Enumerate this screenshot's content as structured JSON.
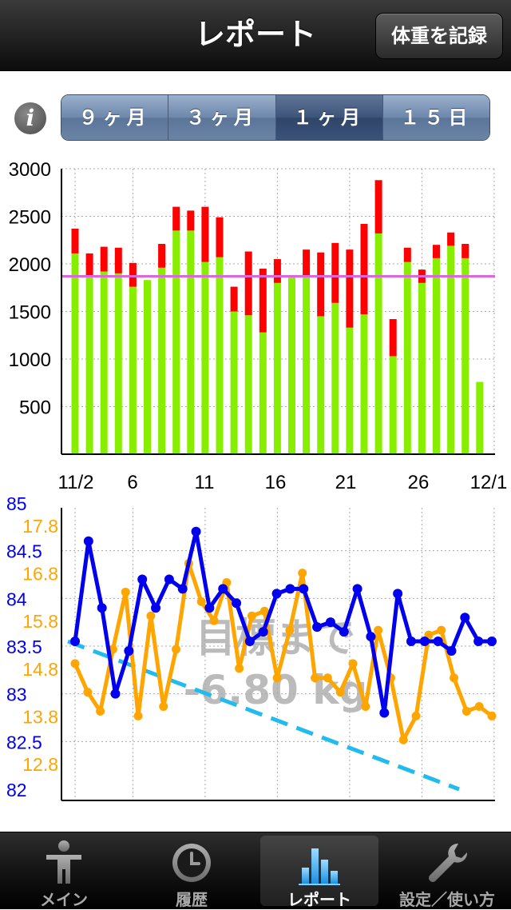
{
  "navbar": {
    "title": "レポート",
    "record_button": "体重を記録"
  },
  "segmented": {
    "items": [
      "９ヶ月",
      "３ヶ月",
      "１ヶ月",
      "１５日"
    ],
    "selected_index": 2
  },
  "tabbar": {
    "items": [
      {
        "label": "メイン",
        "icon": "person-icon"
      },
      {
        "label": "履歴",
        "icon": "clock-icon"
      },
      {
        "label": "レポート",
        "icon": "bar-chart-icon"
      },
      {
        "label": "設定／使い方",
        "icon": "wrench-icon"
      }
    ],
    "selected_index": 2
  },
  "colors": {
    "green_bar": "#88ee00",
    "red_bar": "#ff0000",
    "target_line": "#dd66dd",
    "weight_line": "#0000ee",
    "bodyfat_line": "#ffa500",
    "trend_line": "#22bbee"
  },
  "chart_data": [
    {
      "type": "bar",
      "stacked": true,
      "x_tick_labels": [
        "11/2",
        "6",
        "11",
        "16",
        "21",
        "26",
        "12/1"
      ],
      "y_tick_labels": [
        "3000",
        "2500",
        "2000",
        "1500",
        "1000",
        "500"
      ],
      "ylim": [
        0,
        3000
      ],
      "target_line_value": 1870,
      "series": [
        {
          "values": [
            2110,
            1870,
            1920,
            1900,
            1760,
            1830,
            1960,
            2350,
            2350,
            2020,
            2070,
            1500,
            1460,
            1280,
            1800,
            1870,
            1870,
            1450,
            1590,
            1330,
            1470,
            2320,
            1030,
            2020,
            1800,
            2060,
            2190,
            2060,
            760
          ]
        },
        {
          "values": [
            260,
            240,
            260,
            270,
            250,
            0,
            250,
            250,
            210,
            580,
            420,
            260,
            670,
            670,
            250,
            0,
            280,
            670,
            630,
            820,
            950,
            560,
            390,
            150,
            140,
            140,
            140,
            150,
            0
          ]
        }
      ]
    },
    {
      "type": "line",
      "y_tick_labels_left": [
        "85",
        "84.5",
        "84",
        "83.5",
        "83",
        "82.5",
        "82"
      ],
      "y_tick_labels_right": [
        "17.8",
        "16.8",
        "15.8",
        "14.8",
        "13.8",
        "12.8"
      ],
      "ylim_weight": [
        82,
        85
      ],
      "ylim_bodyfat": [
        11.8,
        18.3
      ],
      "annotation": [
        "目標まで",
        "-6.80 kg"
      ],
      "series": [
        {
          "values": [
            83.55,
            84.6,
            83.9,
            83.0,
            83.45,
            84.2,
            83.9,
            84.2,
            84.1,
            84.7,
            83.9,
            84.1,
            83.95,
            83.55,
            83.65,
            84.05,
            84.1,
            84.1,
            83.7,
            83.75,
            83.65,
            84.1,
            83.6,
            82.8,
            84.05,
            83.55,
            83.55,
            83.55,
            83.45,
            83.8,
            83.55,
            83.55
          ]
        },
        {
          "values": [
            14.9,
            14.3,
            13.9,
            15.2,
            16.4,
            13.8,
            15.9,
            14.0,
            15.2,
            17.0,
            16.2,
            15.8,
            16.6,
            14.8,
            15.9,
            16.0,
            14.6,
            15.6,
            16.8,
            14.6,
            14.6,
            14.3,
            14.9,
            14.0,
            15.6,
            14.6,
            13.3,
            13.8,
            15.5,
            15.6,
            14.6,
            13.9,
            14.0,
            13.8
          ]
        },
        {
          "values": [
            83.55,
            82.0
          ]
        }
      ]
    }
  ]
}
